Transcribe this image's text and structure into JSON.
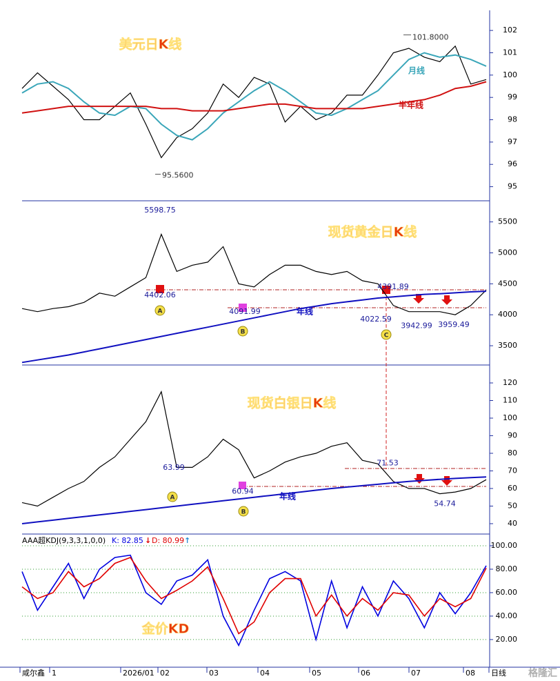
{
  "chart_data": [
    {
      "type": "line",
      "title": "美元日K线",
      "ylim": [
        94.4,
        102.9
      ],
      "yticks": [
        95,
        96,
        97,
        98,
        99,
        100,
        101,
        102
      ],
      "grid": false,
      "series": [
        {
          "color": "#000000",
          "values": [
            99.4,
            100.1,
            99.5,
            98.9,
            98.0,
            98.0,
            98.6,
            99.2,
            97.8,
            96.3,
            97.2,
            97.6,
            98.3,
            99.6,
            99.0,
            99.9,
            99.6,
            97.9,
            98.6,
            98.0,
            98.3,
            99.1,
            99.1,
            100.0,
            101.0,
            101.2,
            100.8,
            100.6,
            101.3,
            99.6,
            99.8
          ]
        },
        {
          "name": "月线",
          "color": "#3aa6b9",
          "values": [
            99.2,
            99.6,
            99.7,
            99.4,
            98.8,
            98.3,
            98.2,
            98.6,
            98.5,
            97.8,
            97.3,
            97.1,
            97.6,
            98.3,
            98.8,
            99.3,
            99.7,
            99.3,
            98.8,
            98.3,
            98.2,
            98.5,
            98.9,
            99.3,
            100.0,
            100.7,
            101.0,
            100.8,
            100.9,
            100.7,
            100.4
          ]
        },
        {
          "name": "半年线",
          "color": "#d01010",
          "values": [
            98.3,
            98.4,
            98.5,
            98.6,
            98.6,
            98.6,
            98.6,
            98.6,
            98.6,
            98.5,
            98.5,
            98.4,
            98.4,
            98.4,
            98.5,
            98.6,
            98.7,
            98.7,
            98.6,
            98.5,
            98.5,
            98.5,
            98.5,
            98.6,
            98.7,
            98.8,
            98.9,
            99.1,
            99.4,
            99.5,
            99.7
          ]
        }
      ],
      "annotations": [
        {
          "value": 101.8,
          "label": "101.8000"
        },
        {
          "value": 95.56,
          "label": "95.5600"
        }
      ]
    },
    {
      "type": "line",
      "title": "现货黄金日K线",
      "ylim": [
        3200,
        5830
      ],
      "yticks": [
        3500,
        4000,
        4500,
        5000,
        5500
      ],
      "grid": false,
      "series": [
        {
          "color": "#000000",
          "values": [
            4100,
            4050,
            4100,
            4130,
            4200,
            4350,
            4300,
            4450,
            4600,
            5300,
            4700,
            4800,
            4850,
            5100,
            4500,
            4450,
            4650,
            4800,
            4800,
            4700,
            4650,
            4700,
            4550,
            4500,
            4150,
            4050,
            4050,
            4050,
            4000,
            4150,
            4400
          ]
        },
        {
          "name": "年线",
          "color": "#1010c0",
          "values": [
            3230,
            3270,
            3310,
            3350,
            3400,
            3450,
            3500,
            3550,
            3600,
            3650,
            3700,
            3750,
            3800,
            3850,
            3900,
            3950,
            4000,
            4050,
            4100,
            4140,
            4180,
            4210,
            4240,
            4270,
            4290,
            4310,
            4330,
            4340,
            4355,
            4370,
            4380
          ]
        }
      ],
      "annotations": [
        {
          "value": 5598.75
        },
        {
          "value": 4402.06
        },
        {
          "value": 4091.99
        },
        {
          "value": 4022.59
        },
        {
          "value": 4391.89
        },
        {
          "value": 3942.99
        },
        {
          "value": 3959.49
        }
      ],
      "markers": [
        "A",
        "B",
        "C"
      ]
    },
    {
      "type": "line",
      "title": "现货白银日K线",
      "ylim": [
        34.5,
        129.8
      ],
      "yticks": [
        40,
        50,
        60,
        70,
        80,
        90,
        100,
        110,
        120
      ],
      "grid": false,
      "series": [
        {
          "color": "#000000",
          "values": [
            52,
            50,
            55,
            60,
            64,
            72,
            78,
            88,
            98,
            115,
            72,
            72,
            78,
            88,
            82,
            66,
            70,
            75,
            78,
            80,
            84,
            86,
            76,
            74,
            64,
            60,
            60,
            57,
            58,
            60,
            65
          ]
        },
        {
          "name": "年线",
          "color": "#1010c0",
          "values": [
            40,
            41,
            42,
            43,
            44,
            45,
            46,
            47,
            48,
            49,
            50,
            51,
            52,
            53,
            54,
            55,
            56,
            57,
            58,
            59,
            60,
            60.8,
            61.6,
            62.4,
            63.2,
            64,
            64.6,
            65.2,
            65.7,
            66.2,
            66.6
          ]
        }
      ],
      "annotations": [
        {
          "value": 63.99
        },
        {
          "value": 60.94
        },
        {
          "value": 71.53
        },
        {
          "value": 54.74
        }
      ],
      "markers": [
        "A",
        "B"
      ]
    },
    {
      "type": "line",
      "title": "金价KD",
      "indicator": "AAA超KDJ(9,3,3,1,0,0)",
      "k_label": "K: 82.85",
      "d_label": "D: 80.99",
      "ylim": [
        -2.4,
        109.4
      ],
      "grid": true,
      "yticks": [
        {
          "value": 20,
          "label": "20.00"
        },
        {
          "value": 40,
          "label": "40.00"
        },
        {
          "value": 60,
          "label": "60.00"
        },
        {
          "value": 80,
          "label": "80.00"
        },
        {
          "value": 100,
          "label": "100.00"
        }
      ],
      "series": [
        {
          "color": "#0000e0",
          "values": [
            78,
            45,
            65,
            85,
            55,
            80,
            90,
            92,
            60,
            50,
            70,
            75,
            88,
            40,
            15,
            45,
            72,
            78,
            70,
            20,
            70,
            30,
            65,
            40,
            70,
            55,
            30,
            60,
            42,
            60,
            83
          ]
        },
        {
          "color": "#e00000",
          "values": [
            65,
            55,
            60,
            78,
            65,
            72,
            85,
            90,
            70,
            55,
            62,
            70,
            82,
            55,
            25,
            35,
            60,
            72,
            72,
            40,
            58,
            40,
            55,
            45,
            60,
            58,
            40,
            55,
            48,
            55,
            81
          ]
        }
      ]
    }
  ],
  "x_labels": [
    "咸尔鑫",
    "1",
    "2026/01",
    "02",
    "03",
    "04",
    "05",
    "06",
    "07",
    "08",
    "日线"
  ],
  "watermark": "格隆汇"
}
